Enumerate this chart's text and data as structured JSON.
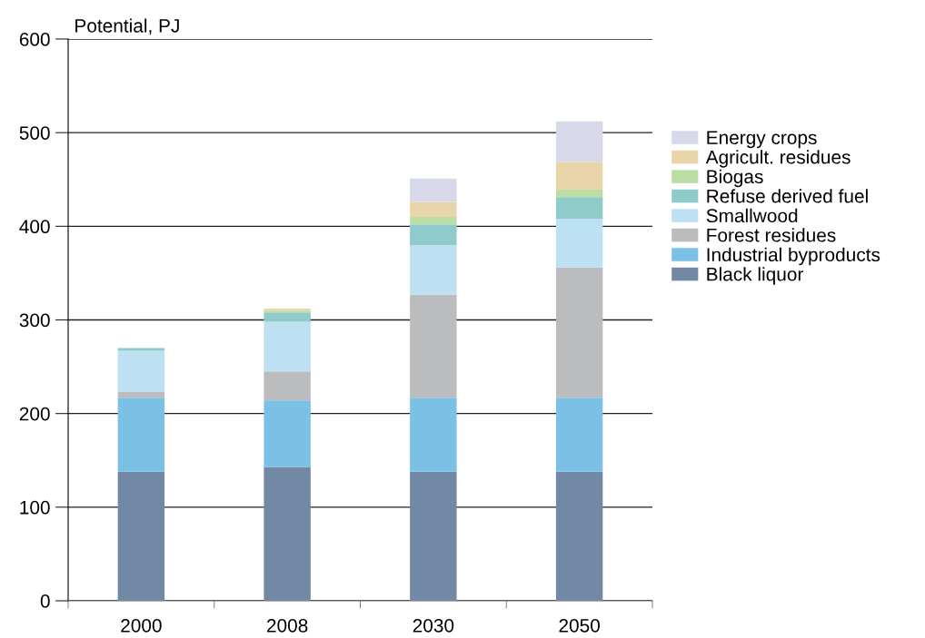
{
  "chart_data": {
    "type": "bar",
    "stacked": true,
    "ylabel": "Potential, PJ",
    "categories": [
      "2000",
      "2008",
      "2030",
      "2050"
    ],
    "series": [
      {
        "name": "Black liquor",
        "color": "#7289a5",
        "values": [
          138,
          143,
          138,
          138
        ]
      },
      {
        "name": "Industrial byproducts",
        "color": "#7bc1e6",
        "values": [
          79,
          71,
          79,
          79
        ]
      },
      {
        "name": "Forest residues",
        "color": "#bbbcbe",
        "values": [
          6,
          31,
          110,
          139
        ]
      },
      {
        "name": "Smallwood",
        "color": "#bde0f2",
        "values": [
          44,
          53,
          53,
          52
        ]
      },
      {
        "name": "Refuse derived fuel",
        "color": "#8ecbca",
        "values": [
          3,
          10,
          22,
          23
        ]
      },
      {
        "name": "Biogas",
        "color": "#badea6",
        "values": [
          null,
          2,
          8,
          8
        ]
      },
      {
        "name": "Agricult. residues",
        "color": "#e8d5a9",
        "values": [
          null,
          2,
          16,
          30
        ]
      },
      {
        "name": "Energy crops",
        "color": "#d7d8ea",
        "values": [
          0,
          0,
          25,
          43
        ]
      }
    ],
    "ylim": [
      0,
      600
    ],
    "yticks": [
      0,
      100,
      200,
      300,
      400,
      500,
      600
    ],
    "grid": "y",
    "legend": "right"
  }
}
